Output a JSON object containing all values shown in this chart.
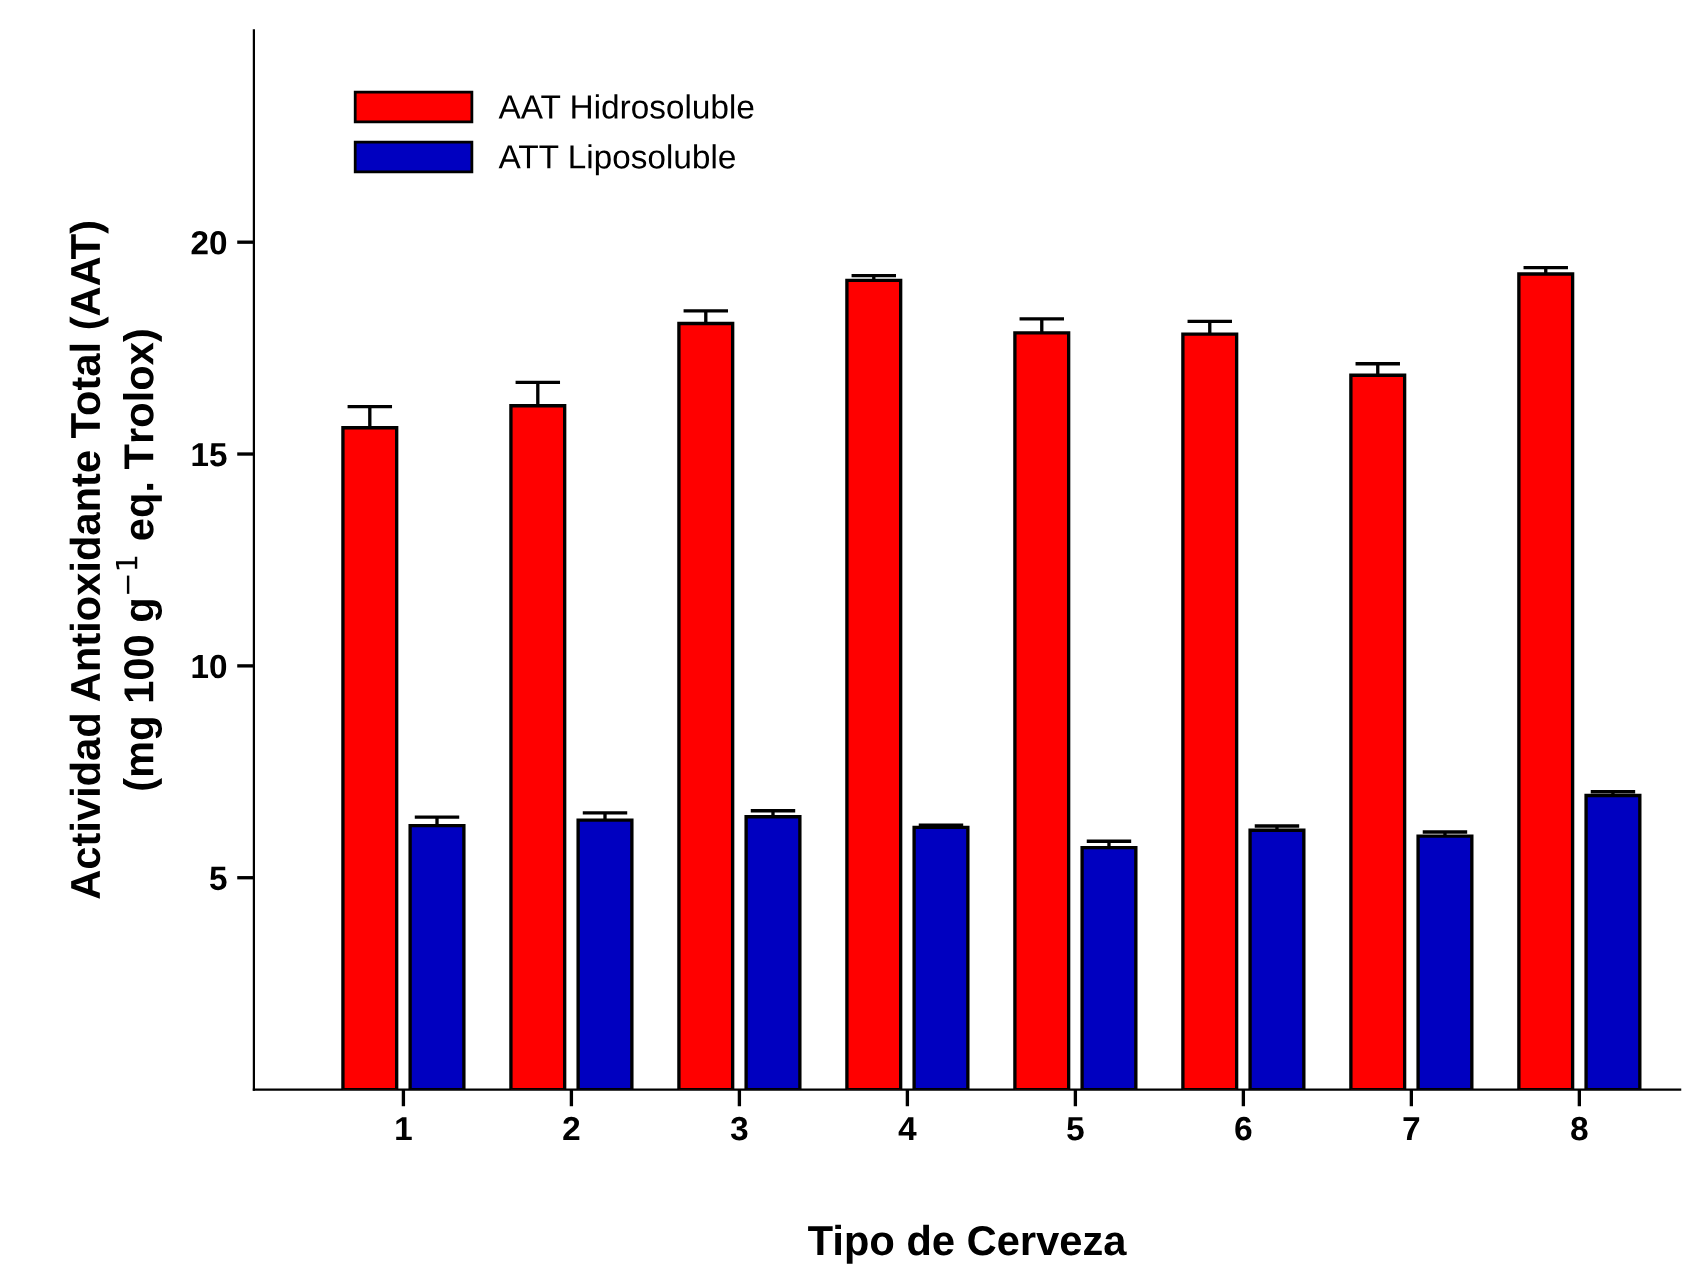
{
  "chart_data": {
    "type": "bar",
    "xlabel": "Tipo de Cerveza",
    "ylabel": "Actividad Antioxidante Total (AAT)\n(mg 100 g$^{−1}$ eq. Trolox)",
    "categories": [
      "1",
      "2",
      "3",
      "4",
      "5",
      "6",
      "7",
      "8"
    ],
    "series": [
      {
        "name": "AAT Hidrosoluble",
        "color": "#ff0000",
        "values": [
          15.62,
          16.14,
          18.08,
          19.1,
          17.86,
          17.83,
          16.86,
          19.25
        ],
        "errors": [
          0.5,
          0.55,
          0.3,
          0.11,
          0.33,
          0.3,
          0.27,
          0.15
        ]
      },
      {
        "name": "ATT Liposoluble",
        "color": "#0000c0",
        "values": [
          6.23,
          6.36,
          6.44,
          6.19,
          5.71,
          6.12,
          5.98,
          6.94
        ],
        "errors": [
          0.2,
          0.17,
          0.14,
          0.05,
          0.15,
          0.1,
          0.1,
          0.09
        ]
      }
    ],
    "ylim": [
      0,
      25
    ],
    "yticks": [
      5,
      10,
      15,
      20
    ],
    "grid": false,
    "legend": "top left"
  }
}
